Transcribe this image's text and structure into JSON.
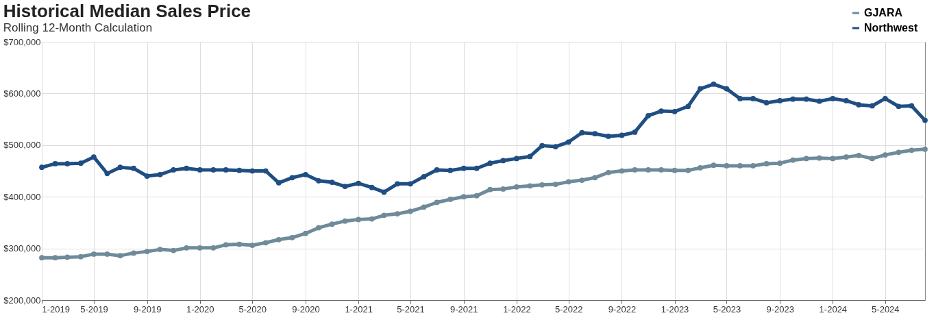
{
  "chart_data": {
    "type": "line",
    "title": "Historical Median Sales Price",
    "subtitle": "Rolling 12-Month Calculation",
    "x": [
      "2019-01",
      "2019-02",
      "2019-03",
      "2019-04",
      "2019-05",
      "2019-06",
      "2019-07",
      "2019-08",
      "2019-09",
      "2019-10",
      "2019-11",
      "2019-12",
      "2020-01",
      "2020-02",
      "2020-03",
      "2020-04",
      "2020-05",
      "2020-06",
      "2020-07",
      "2020-08",
      "2020-09",
      "2020-10",
      "2020-11",
      "2020-12",
      "2021-01",
      "2021-02",
      "2021-03",
      "2021-04",
      "2021-05",
      "2021-06",
      "2021-07",
      "2021-08",
      "2021-09",
      "2021-10",
      "2021-11",
      "2021-12",
      "2022-01",
      "2022-02",
      "2022-03",
      "2022-04",
      "2022-05",
      "2022-06",
      "2022-07",
      "2022-08",
      "2022-09",
      "2022-10",
      "2022-11",
      "2022-12",
      "2023-01",
      "2023-02",
      "2023-03",
      "2023-04",
      "2023-05",
      "2023-06",
      "2023-07",
      "2023-08",
      "2023-09",
      "2023-10",
      "2023-11",
      "2023-12",
      "2024-01",
      "2024-02",
      "2024-03",
      "2024-04",
      "2024-05",
      "2024-06",
      "2024-07",
      "2024-08"
    ],
    "series": [
      {
        "name": "GJARA",
        "color": "#6f8a99",
        "values": [
          282000,
          282000,
          283000,
          284000,
          289000,
          289000,
          286000,
          291000,
          294000,
          298000,
          296000,
          301000,
          301000,
          301000,
          307000,
          308000,
          306000,
          311000,
          317000,
          321000,
          329000,
          340000,
          347000,
          353000,
          356000,
          357000,
          364000,
          367000,
          372000,
          380000,
          389000,
          395000,
          400000,
          402000,
          414000,
          415000,
          419000,
          421000,
          423000,
          424000,
          429000,
          432000,
          437000,
          447000,
          450000,
          452000,
          452000,
          452000,
          451000,
          451000,
          456000,
          461000,
          460000,
          460000,
          460000,
          464000,
          465000,
          471000,
          474000,
          475000,
          474000,
          477000,
          480000,
          474000,
          481000,
          486000,
          490000,
          492000
        ]
      },
      {
        "name": "Northwest",
        "color": "#1f4e82",
        "values": [
          457000,
          464000,
          464000,
          465000,
          477000,
          445000,
          457000,
          455000,
          440000,
          443000,
          452000,
          455000,
          452000,
          452000,
          452000,
          451000,
          450000,
          450000,
          427000,
          437000,
          443000,
          431000,
          428000,
          420000,
          426000,
          418000,
          409000,
          425000,
          425000,
          439000,
          452000,
          451000,
          455000,
          455000,
          465000,
          470000,
          474000,
          478000,
          499000,
          497000,
          506000,
          524000,
          522000,
          517000,
          519000,
          525000,
          557000,
          566000,
          565000,
          575000,
          609000,
          618000,
          609000,
          590000,
          590000,
          582000,
          586000,
          589000,
          589000,
          585000,
          590000,
          586000,
          578000,
          576000,
          590000,
          575000,
          576000,
          548000
        ]
      }
    ],
    "xlim": [
      "2019-01",
      "2024-08"
    ],
    "xticks": [
      {
        "value": "2019-01",
        "label": "1-2019"
      },
      {
        "value": "2019-05",
        "label": "5-2019"
      },
      {
        "value": "2019-09",
        "label": "9-2019"
      },
      {
        "value": "2020-01",
        "label": "1-2020"
      },
      {
        "value": "2020-05",
        "label": "5-2020"
      },
      {
        "value": "2020-09",
        "label": "9-2020"
      },
      {
        "value": "2021-01",
        "label": "1-2021"
      },
      {
        "value": "2021-05",
        "label": "5-2021"
      },
      {
        "value": "2021-09",
        "label": "9-2021"
      },
      {
        "value": "2022-01",
        "label": "1-2022"
      },
      {
        "value": "2022-05",
        "label": "5-2022"
      },
      {
        "value": "2022-09",
        "label": "9-2022"
      },
      {
        "value": "2023-01",
        "label": "1-2023"
      },
      {
        "value": "2023-05",
        "label": "5-2023"
      },
      {
        "value": "2023-09",
        "label": "9-2023"
      },
      {
        "value": "2024-01",
        "label": "1-2024"
      },
      {
        "value": "2024-05",
        "label": "5-2024"
      }
    ],
    "ylim": [
      200000,
      700000
    ],
    "yticks": [
      {
        "value": 200000,
        "label": "$200,000"
      },
      {
        "value": 300000,
        "label": "$300,000"
      },
      {
        "value": 400000,
        "label": "$400,000"
      },
      {
        "value": 500000,
        "label": "$500,000"
      },
      {
        "value": 600000,
        "label": "$600,000"
      },
      {
        "value": 700000,
        "label": "$700,000"
      }
    ],
    "grid": true,
    "legend": "top right",
    "marker": "circle",
    "line_style": "solid"
  }
}
